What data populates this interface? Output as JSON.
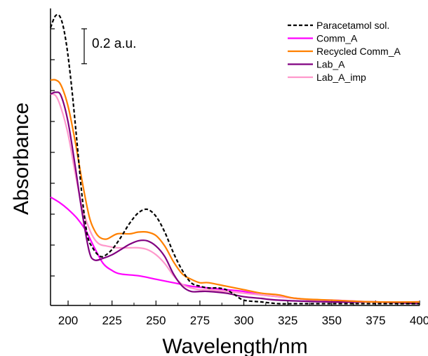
{
  "chart_data": {
    "type": "line",
    "xlabel": "Wavelength/nm",
    "ylabel": "Absorbance",
    "xlim": [
      190,
      400
    ],
    "ylim": [
      0,
      1.7
    ],
    "x_ticks": [
      200,
      225,
      250,
      275,
      300,
      325,
      350,
      375,
      400
    ],
    "x_tick_labels": [
      "200",
      "225",
      "250",
      "275",
      "300",
      "325",
      "350",
      "375",
      "400"
    ],
    "y_tick_labels_shown": false,
    "grid": false,
    "legend_position": "top-right",
    "scale_bar": {
      "label": "0.2 a.u.",
      "value": 0.2
    },
    "series": [
      {
        "name": "Paracetamol sol.",
        "color": "#000000",
        "dash": "dashed",
        "x": [
          190,
          193,
          196,
          199,
          202,
          205,
          208,
          211,
          214,
          217,
          220,
          225,
          230,
          235,
          240,
          245,
          250,
          255,
          260,
          265,
          270,
          275,
          280,
          285,
          290,
          295,
          300,
          310,
          320,
          330,
          350,
          375,
          400
        ],
        "y": [
          1.59,
          1.66,
          1.64,
          1.5,
          1.25,
          0.94,
          0.62,
          0.4,
          0.33,
          0.29,
          0.28,
          0.32,
          0.39,
          0.47,
          0.53,
          0.55,
          0.51,
          0.42,
          0.3,
          0.2,
          0.13,
          0.11,
          0.1,
          0.1,
          0.09,
          0.06,
          0.03,
          0.02,
          0.01,
          0.01,
          0.01,
          0.01,
          0.01
        ]
      },
      {
        "name": "Comm_A",
        "color": "#ff00ff",
        "dash": "solid",
        "x": [
          190,
          195,
          200,
          205,
          210,
          215,
          220,
          225,
          230,
          240,
          250,
          260,
          270,
          280,
          290,
          300,
          310,
          320,
          330,
          340,
          350,
          375,
          400
        ],
        "y": [
          0.62,
          0.59,
          0.55,
          0.5,
          0.43,
          0.33,
          0.24,
          0.2,
          0.18,
          0.17,
          0.15,
          0.13,
          0.11,
          0.1,
          0.09,
          0.08,
          0.06,
          0.05,
          0.04,
          0.03,
          0.03,
          0.02,
          0.02
        ]
      },
      {
        "name": "Recycled Comm_A",
        "color": "#ff8000",
        "dash": "solid",
        "x": [
          190,
          193,
          196,
          200,
          204,
          208,
          212,
          215,
          218,
          222,
          228,
          235,
          240,
          245,
          250,
          255,
          260,
          265,
          270,
          275,
          280,
          290,
          300,
          310,
          320,
          330,
          350,
          375,
          400
        ],
        "y": [
          1.29,
          1.29,
          1.26,
          1.14,
          0.94,
          0.71,
          0.51,
          0.43,
          0.39,
          0.38,
          0.41,
          0.41,
          0.42,
          0.42,
          0.4,
          0.34,
          0.25,
          0.18,
          0.15,
          0.13,
          0.13,
          0.11,
          0.09,
          0.07,
          0.06,
          0.04,
          0.03,
          0.02,
          0.02
        ]
      },
      {
        "name": "Lab_A",
        "color": "#800080",
        "dash": "solid",
        "x": [
          190,
          193,
          196,
          200,
          204,
          208,
          212,
          215,
          220,
          225,
          230,
          235,
          240,
          245,
          250,
          255,
          260,
          265,
          270,
          275,
          280,
          290,
          300,
          310,
          320,
          350,
          375,
          400
        ],
        "y": [
          1.21,
          1.22,
          1.2,
          1.05,
          0.8,
          0.53,
          0.31,
          0.26,
          0.27,
          0.29,
          0.32,
          0.35,
          0.37,
          0.37,
          0.34,
          0.28,
          0.18,
          0.11,
          0.08,
          0.08,
          0.08,
          0.07,
          0.05,
          0.04,
          0.03,
          0.02,
          0.02,
          0.01
        ]
      },
      {
        "name": "Lab_A_imp",
        "color": "#ff99cc",
        "dash": "solid",
        "x": [
          190,
          193,
          196,
          200,
          204,
          208,
          212,
          215,
          218,
          222,
          228,
          235,
          240,
          245,
          250,
          255,
          260,
          265,
          270,
          275,
          280,
          290,
          300,
          310,
          320,
          330,
          350,
          375,
          400
        ],
        "y": [
          1.21,
          1.2,
          1.13,
          0.98,
          0.76,
          0.56,
          0.44,
          0.38,
          0.35,
          0.34,
          0.33,
          0.33,
          0.33,
          0.32,
          0.29,
          0.24,
          0.17,
          0.12,
          0.1,
          0.09,
          0.09,
          0.08,
          0.07,
          0.06,
          0.05,
          0.04,
          0.02,
          0.02,
          0.02
        ]
      }
    ]
  }
}
